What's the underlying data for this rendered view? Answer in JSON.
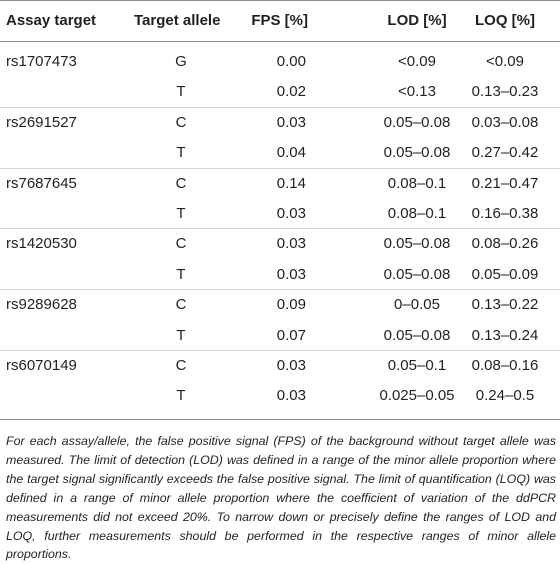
{
  "table": {
    "headers": {
      "assay_target": "Assay target",
      "target_allele": "Target allele",
      "fps": "FPS [%]",
      "lod": "LOD [%]",
      "loq": "LOQ [%]"
    },
    "rows": [
      {
        "assay": "rs1707473",
        "allele": "G",
        "fps": "0.00",
        "lod": "<0.09",
        "loq": "<0.09"
      },
      {
        "assay": "",
        "allele": "T",
        "fps": "0.02",
        "lod": "<0.13",
        "loq": "0.13–0.23"
      },
      {
        "assay": "rs2691527",
        "allele": "C",
        "fps": "0.03",
        "lod": "0.05–0.08",
        "loq": "0.03–0.08"
      },
      {
        "assay": "",
        "allele": "T",
        "fps": "0.04",
        "lod": "0.05–0.08",
        "loq": "0.27–0.42"
      },
      {
        "assay": "rs7687645",
        "allele": "C",
        "fps": "0.14",
        "lod": "0.08–0.1",
        "loq": "0.21–0.47"
      },
      {
        "assay": "",
        "allele": "T",
        "fps": "0.03",
        "lod": "0.08–0.1",
        "loq": "0.16–0.38"
      },
      {
        "assay": "rs1420530",
        "allele": "C",
        "fps": "0.03",
        "lod": "0.05–0.08",
        "loq": "0.08–0.26"
      },
      {
        "assay": "",
        "allele": "T",
        "fps": "0.03",
        "lod": "0.05–0.08",
        "loq": "0.05–0.09"
      },
      {
        "assay": "rs9289628",
        "allele": "C",
        "fps": "0.09",
        "lod": "0–0.05",
        "loq": "0.13–0.22"
      },
      {
        "assay": "",
        "allele": "T",
        "fps": "0.07",
        "lod": "0.05–0.08",
        "loq": "0.13–0.24"
      },
      {
        "assay": "rs6070149",
        "allele": "C",
        "fps": "0.03",
        "lod": "0.05–0.1",
        "loq": "0.08–0.16"
      },
      {
        "assay": "",
        "allele": "T",
        "fps": "0.03",
        "lod": "0.025–0.05",
        "loq": "0.24–0.5"
      }
    ]
  },
  "footnote": "For each assay/allele, the false positive signal (FPS) of the background without target allele was measured. The limit of detection (LOD) was defined in a range of the minor allele proportion where the target signal significantly exceeds the false positive signal. The limit of quantification (LOQ) was defined in a range of minor allele proportion where the coefficient of variation of the ddPCR measurements did not exceed 20%. To narrow down or precisely define the ranges of LOD and LOQ, further measurements should be performed in the respective ranges of minor allele proportions."
}
